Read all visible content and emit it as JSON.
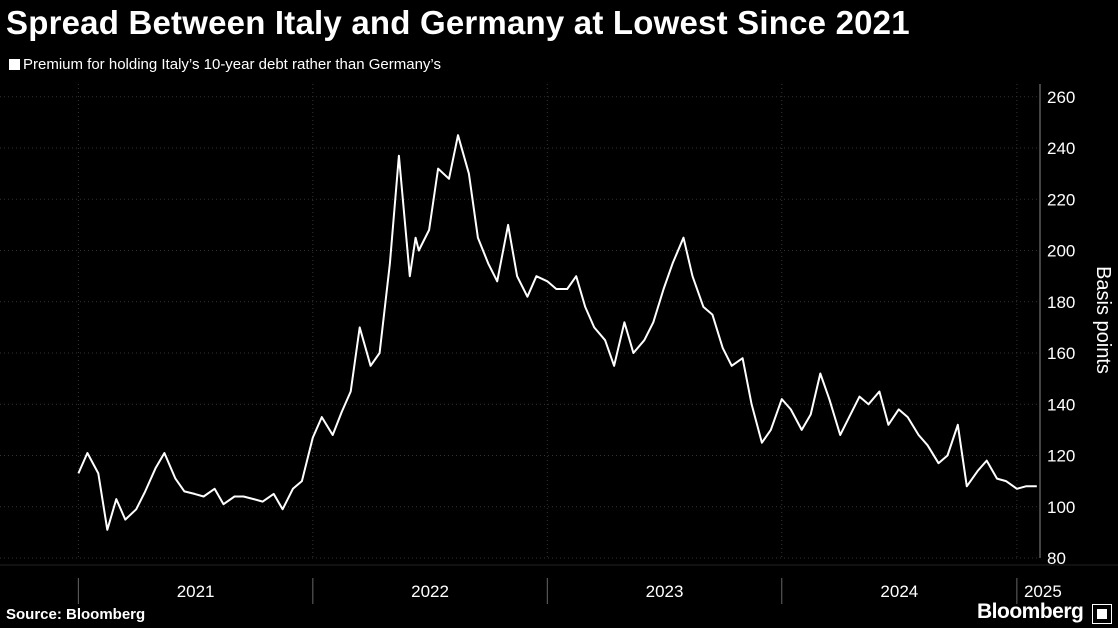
{
  "chart_data": {
    "type": "line",
    "title": "Spread Between Italy and Germany at Lowest Since 2021",
    "ylabel": "Basis points",
    "xlabel": "",
    "ylim": [
      80,
      265
    ],
    "yticks": [
      80,
      100,
      120,
      140,
      160,
      180,
      200,
      220,
      240,
      260
    ],
    "x_tick_labels": [
      "2021",
      "2022",
      "2023",
      "2024",
      "2025"
    ],
    "grid": true,
    "legend_position": "top-left",
    "colors": {
      "background": "#000000",
      "line": "#ffffff",
      "grid": "#333333"
    },
    "series": [
      {
        "name": "Premium for holding Italy’s 10-year debt rather than Germany’s",
        "x": [
          "2021-01-01",
          "2021-01-15",
          "2021-02-01",
          "2021-02-15",
          "2021-03-01",
          "2021-03-15",
          "2021-04-01",
          "2021-04-15",
          "2021-05-01",
          "2021-05-15",
          "2021-06-01",
          "2021-06-15",
          "2021-07-01",
          "2021-07-15",
          "2021-08-01",
          "2021-08-15",
          "2021-09-01",
          "2021-09-15",
          "2021-10-01",
          "2021-10-15",
          "2021-11-01",
          "2021-11-15",
          "2021-12-01",
          "2021-12-15",
          "2022-01-01",
          "2022-01-15",
          "2022-02-01",
          "2022-02-15",
          "2022-03-01",
          "2022-03-15",
          "2022-04-01",
          "2022-04-15",
          "2022-05-01",
          "2022-05-15",
          "2022-06-01",
          "2022-06-10",
          "2022-06-15",
          "2022-07-01",
          "2022-07-15",
          "2022-08-01",
          "2022-08-15",
          "2022-09-01",
          "2022-09-15",
          "2022-10-01",
          "2022-10-15",
          "2022-11-01",
          "2022-11-15",
          "2022-12-01",
          "2022-12-15",
          "2023-01-01",
          "2023-01-15",
          "2023-02-01",
          "2023-02-15",
          "2023-03-01",
          "2023-03-15",
          "2023-04-01",
          "2023-04-15",
          "2023-05-01",
          "2023-05-15",
          "2023-06-01",
          "2023-06-15",
          "2023-07-01",
          "2023-07-15",
          "2023-08-01",
          "2023-08-15",
          "2023-09-01",
          "2023-09-15",
          "2023-10-01",
          "2023-10-15",
          "2023-11-01",
          "2023-11-15",
          "2023-12-01",
          "2023-12-15",
          "2024-01-01",
          "2024-01-15",
          "2024-02-01",
          "2024-02-15",
          "2024-03-01",
          "2024-03-15",
          "2024-04-01",
          "2024-04-15",
          "2024-05-01",
          "2024-05-15",
          "2024-06-01",
          "2024-06-15",
          "2024-07-01",
          "2024-07-15",
          "2024-08-01",
          "2024-08-15",
          "2024-09-01",
          "2024-09-15",
          "2024-10-01",
          "2024-10-15",
          "2024-11-01",
          "2024-11-15",
          "2024-12-01",
          "2024-12-15",
          "2025-01-01",
          "2025-01-15",
          "2025-02-01"
        ],
        "values": [
          113,
          121,
          113,
          91,
          103,
          95,
          99,
          106,
          115,
          121,
          111,
          106,
          105,
          104,
          107,
          101,
          104,
          104,
          103,
          102,
          105,
          99,
          107,
          110,
          127,
          135,
          128,
          137,
          145,
          170,
          155,
          160,
          195,
          237,
          190,
          205,
          200,
          208,
          232,
          228,
          245,
          230,
          205,
          195,
          188,
          210,
          190,
          182,
          190,
          188,
          185,
          185,
          190,
          178,
          170,
          165,
          155,
          172,
          160,
          165,
          172,
          185,
          195,
          205,
          190,
          178,
          175,
          162,
          155,
          158,
          140,
          125,
          130,
          142,
          138,
          130,
          136,
          152,
          142,
          128,
          135,
          143,
          140,
          145,
          132,
          138,
          135,
          128,
          124,
          117,
          120,
          132,
          108,
          114,
          118,
          111,
          110,
          107,
          108,
          108
        ]
      }
    ]
  },
  "footer": {
    "source": "Source: Bloomberg",
    "brand": "Bloomberg"
  }
}
